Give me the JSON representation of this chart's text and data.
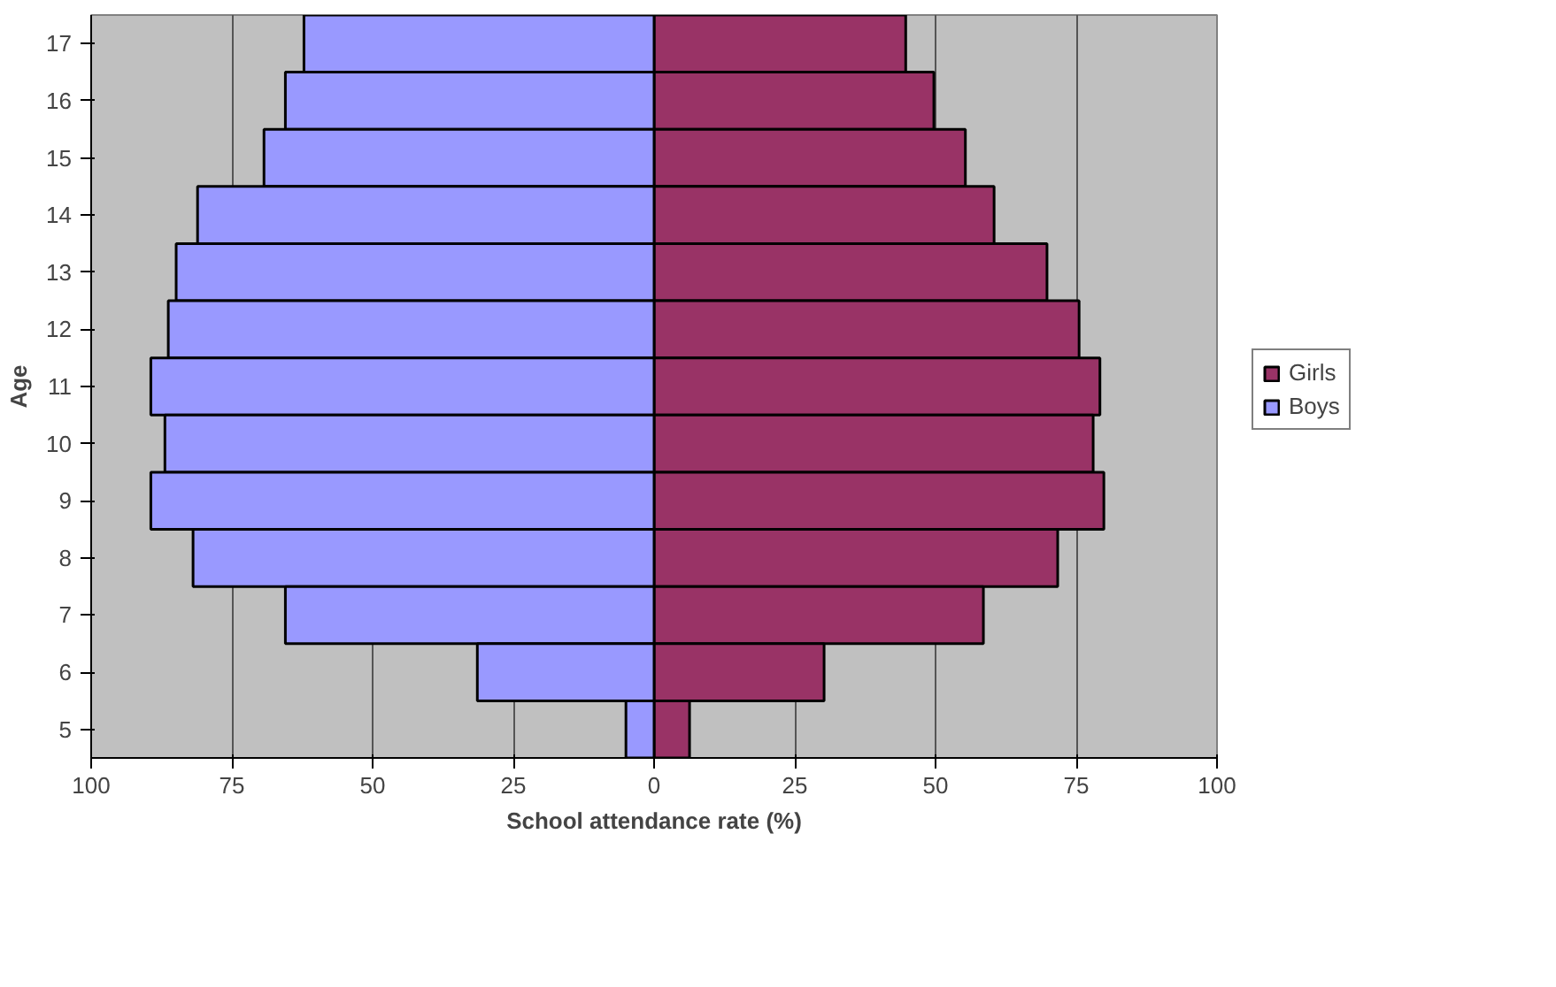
{
  "chart_data": {
    "type": "bar",
    "orientation": "horizontal",
    "xlabel": "School attendance rate (%)",
    "ylabel": "Age",
    "categories": [
      "17",
      "16",
      "15",
      "14",
      "13",
      "12",
      "11",
      "10",
      "9",
      "8",
      "7",
      "6",
      "5"
    ],
    "series": [
      {
        "name": "Girls",
        "color": "#993366",
        "values": [
          44.7,
          49.7,
          55.3,
          60.4,
          69.8,
          75.5,
          79.2,
          78,
          79.9,
          71.7,
          58.5,
          30.2,
          6.3
        ]
      },
      {
        "name": "Boys",
        "color": "#9999ff",
        "values": [
          -62.2,
          -65.5,
          -69.3,
          -81.1,
          -84.9,
          -86.3,
          -89.4,
          -86.9,
          -89.4,
          -81.9,
          -65.5,
          -31.4,
          -5
        ]
      }
    ],
    "xlim": [
      -100,
      100
    ],
    "xticks": [
      {
        "value": -100,
        "label": "100"
      },
      {
        "value": -75,
        "label": "75"
      },
      {
        "value": -50,
        "label": "50"
      },
      {
        "value": -25,
        "label": "25"
      },
      0,
      25,
      50,
      75,
      100
    ],
    "grid": "x",
    "legend": "right",
    "stacked": true
  }
}
